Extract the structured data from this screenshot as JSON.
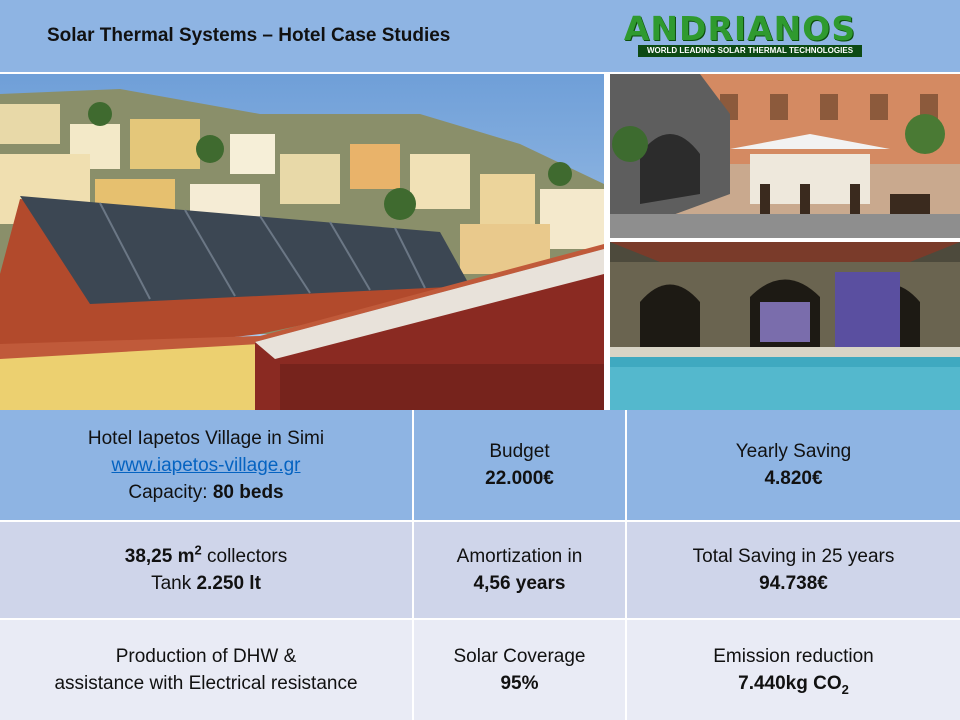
{
  "header": {
    "title": "Solar Thermal Systems – Hotel Case Studies",
    "logo": {
      "name": "ANDRIANOS",
      "tagline": "WORLD LEADING SOLAR THERMAL TECHNOLOGIES"
    }
  },
  "table": {
    "rows": [
      [
        [
          [
            {
              "text": "Hotel Iapetos Village in Simi"
            }
          ],
          [
            {
              "text": "www.iapetos-village.gr",
              "style": "link"
            }
          ],
          [
            {
              "text": "Capacity: "
            },
            {
              "text": "80 beds",
              "style": "bold"
            }
          ]
        ],
        [
          [
            {
              "text": "Budget"
            }
          ],
          [
            {
              "text": "22.000€",
              "style": "bold"
            }
          ]
        ],
        [
          [
            {
              "text": "Yearly Saving"
            }
          ],
          [
            {
              "text": "4.820€",
              "style": "bold"
            }
          ]
        ]
      ],
      [
        [
          [
            {
              "text": "38,25 m",
              "style": "bold"
            },
            {
              "text": "2",
              "style": "sup"
            },
            {
              "text": " collectors"
            }
          ],
          [
            {
              "text": "Tank "
            },
            {
              "text": "2.250 lt",
              "style": "bold"
            }
          ]
        ],
        [
          [
            {
              "text": "Amortization in"
            }
          ],
          [
            {
              "text": "4,56 years",
              "style": "bold"
            }
          ]
        ],
        [
          [
            {
              "text": "Total Saving in 25 years"
            }
          ],
          [
            {
              "text": "94.738€",
              "style": "bold"
            }
          ]
        ]
      ],
      [
        [
          [
            {
              "text": "Production of DHW &"
            }
          ],
          [
            {
              "text": "assistance with Electrical resistance"
            }
          ]
        ],
        [
          [
            {
              "text": "Solar Coverage"
            }
          ],
          [
            {
              "text": "95%",
              "style": "bold"
            }
          ]
        ],
        [
          [
            {
              "text": "Emission reduction"
            }
          ],
          [
            {
              "text": "7.440kg CO",
              "style": "bold"
            },
            {
              "text": "2",
              "style": "sub"
            }
          ]
        ]
      ]
    ]
  }
}
